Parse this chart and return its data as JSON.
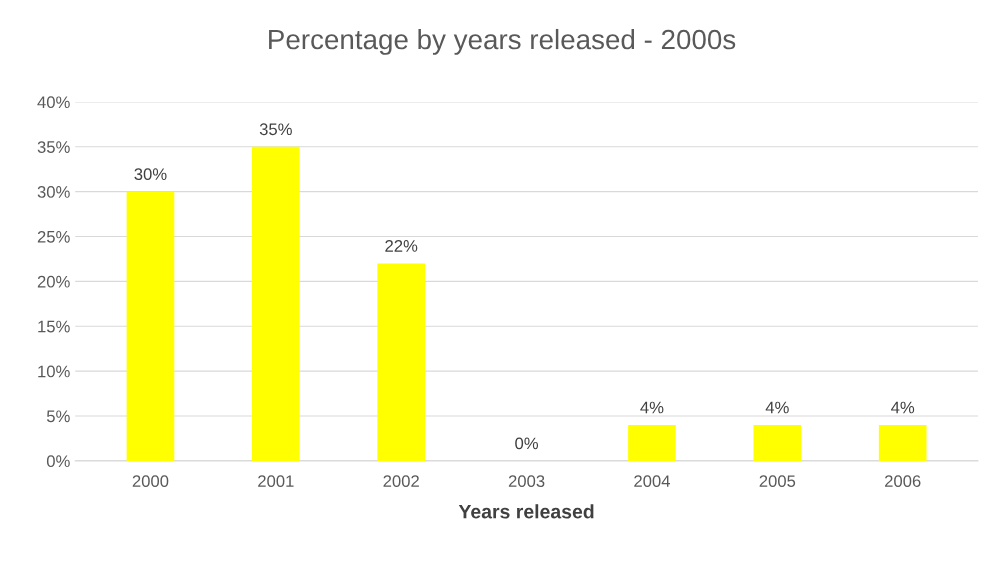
{
  "chart_data": {
    "type": "bar",
    "title": "Percentage by years released - 2000s",
    "xlabel": "Years released",
    "categories": [
      "2000",
      "2001",
      "2002",
      "2003",
      "2004",
      "2005",
      "2006"
    ],
    "values": [
      30,
      35,
      22,
      0,
      4,
      4,
      4
    ],
    "value_labels": [
      "30%",
      "35%",
      "22%",
      "0%",
      "4%",
      "4%",
      "4%"
    ],
    "color": "#ffff00",
    "ylim": [
      0,
      40
    ],
    "yticks": [
      {
        "value": 0,
        "label": "0%"
      },
      {
        "value": 5,
        "label": "5%"
      },
      {
        "value": 10,
        "label": "10%"
      },
      {
        "value": 15,
        "label": "15%"
      },
      {
        "value": 20,
        "label": "20%"
      },
      {
        "value": 25,
        "label": "25%"
      },
      {
        "value": 30,
        "label": "30%"
      },
      {
        "value": 35,
        "label": "35%"
      },
      {
        "value": 40,
        "label": "40%"
      }
    ],
    "grid": "y",
    "legend": false
  }
}
